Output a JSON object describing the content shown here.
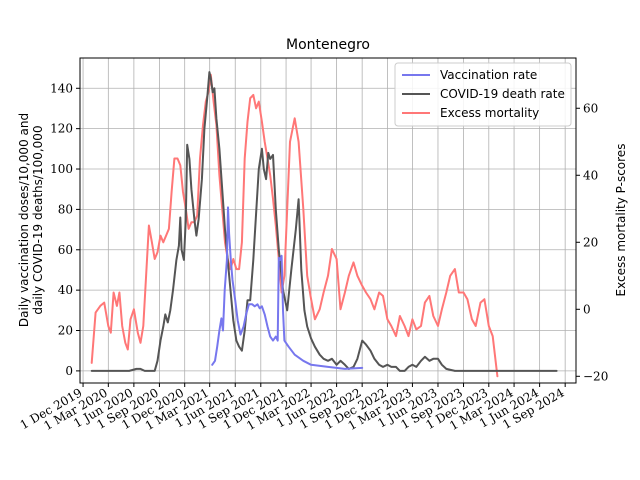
{
  "chart_data": {
    "type": "line",
    "title": "Montenegro",
    "ylabel_left": [
      "Daily vaccination doses/10,000 and",
      "daily COVID-19 deaths/100,000"
    ],
    "ylabel_right": "Excess mortality P-scores",
    "ylim_left": [
      -6,
      155
    ],
    "ylim_right": [
      -22,
      75
    ],
    "xlim": [
      "2019-11-20",
      "2024-10-10"
    ],
    "grid": true,
    "legend_position": "top-right",
    "x_tick_labels": [
      {
        "date": "2019-12-01",
        "label": "1 Dec 2019"
      },
      {
        "date": "2020-03-01",
        "label": "1 Mar 2020"
      },
      {
        "date": "2020-06-01",
        "label": "1 Jun 2020"
      },
      {
        "date": "2020-09-01",
        "label": "1 Sep 2020"
      },
      {
        "date": "2020-12-01",
        "label": "1 Dec 2020"
      },
      {
        "date": "2021-03-01",
        "label": "1 Mar 2021"
      },
      {
        "date": "2021-06-01",
        "label": "1 Jun 2021"
      },
      {
        "date": "2021-09-01",
        "label": "1 Sep 2021"
      },
      {
        "date": "2021-12-01",
        "label": "1 Dec 2021"
      },
      {
        "date": "2022-03-01",
        "label": "1 Mar 2022"
      },
      {
        "date": "2022-06-01",
        "label": "1 Jun 2022"
      },
      {
        "date": "2022-09-01",
        "label": "1 Sep 2022"
      },
      {
        "date": "2022-12-01",
        "label": "1 Dec 2022"
      },
      {
        "date": "2023-03-01",
        "label": "1 Mar 2023"
      },
      {
        "date": "2023-06-01",
        "label": "1 Jun 2023"
      },
      {
        "date": "2023-09-01",
        "label": "1 Sep 2023"
      },
      {
        "date": "2023-12-01",
        "label": "1 Dec 2023"
      },
      {
        "date": "2024-03-01",
        "label": "1 Mar 2024"
      },
      {
        "date": "2024-06-01",
        "label": "1 Jun 2024"
      },
      {
        "date": "2024-09-01",
        "label": "1 Sep 2024"
      }
    ],
    "y_ticks_left": [
      0,
      20,
      40,
      60,
      80,
      100,
      120,
      140
    ],
    "y_ticks_right": [
      -20,
      0,
      20,
      40,
      60
    ],
    "series": [
      {
        "name": "Vaccination rate",
        "axis": "left",
        "color": "#7777ee",
        "points": [
          [
            "2021-03-10",
            3
          ],
          [
            "2021-03-20",
            5
          ],
          [
            "2021-03-28",
            12
          ],
          [
            "2021-04-05",
            20
          ],
          [
            "2021-04-12",
            26
          ],
          [
            "2021-04-18",
            20
          ],
          [
            "2021-04-24",
            40
          ],
          [
            "2021-05-02",
            55
          ],
          [
            "2021-05-06",
            81
          ],
          [
            "2021-05-10",
            68
          ],
          [
            "2021-05-16",
            55
          ],
          [
            "2021-05-22",
            45
          ],
          [
            "2021-06-01",
            35
          ],
          [
            "2021-06-10",
            25
          ],
          [
            "2021-06-20",
            18
          ],
          [
            "2021-07-01",
            22
          ],
          [
            "2021-07-10",
            28
          ],
          [
            "2021-07-20",
            33
          ],
          [
            "2021-08-01",
            33
          ],
          [
            "2021-08-10",
            32
          ],
          [
            "2021-08-20",
            33
          ],
          [
            "2021-08-28",
            31
          ],
          [
            "2021-09-05",
            32
          ],
          [
            "2021-09-15",
            28
          ],
          [
            "2021-09-25",
            22
          ],
          [
            "2021-10-05",
            17
          ],
          [
            "2021-10-15",
            15
          ],
          [
            "2021-10-25",
            17
          ],
          [
            "2021-11-01",
            15
          ],
          [
            "2021-11-05",
            56
          ],
          [
            "2021-11-10",
            55
          ],
          [
            "2021-11-15",
            57
          ],
          [
            "2021-11-20",
            30
          ],
          [
            "2021-11-25",
            15
          ],
          [
            "2021-12-10",
            12
          ],
          [
            "2022-01-01",
            8
          ],
          [
            "2022-02-01",
            5
          ],
          [
            "2022-03-01",
            3
          ],
          [
            "2022-05-01",
            2
          ],
          [
            "2022-07-01",
            1
          ],
          [
            "2022-09-01",
            1.5
          ]
        ]
      },
      {
        "name": "COVID-19 death rate",
        "axis": "left",
        "color": "#555555",
        "points": [
          [
            "2020-01-01",
            0
          ],
          [
            "2020-03-01",
            0
          ],
          [
            "2020-05-15",
            0
          ],
          [
            "2020-06-10",
            1
          ],
          [
            "2020-06-25",
            1
          ],
          [
            "2020-07-10",
            0
          ],
          [
            "2020-08-01",
            0
          ],
          [
            "2020-08-15",
            0
          ],
          [
            "2020-08-25",
            5
          ],
          [
            "2020-09-05",
            15
          ],
          [
            "2020-09-15",
            22
          ],
          [
            "2020-09-22",
            28
          ],
          [
            "2020-10-01",
            24
          ],
          [
            "2020-10-10",
            30
          ],
          [
            "2020-10-20",
            40
          ],
          [
            "2020-11-01",
            55
          ],
          [
            "2020-11-10",
            62
          ],
          [
            "2020-11-15",
            76
          ],
          [
            "2020-11-20",
            60
          ],
          [
            "2020-11-28",
            55
          ],
          [
            "2020-12-05",
            75
          ],
          [
            "2020-12-10",
            112
          ],
          [
            "2020-12-18",
            105
          ],
          [
            "2020-12-25",
            90
          ],
          [
            "2021-01-05",
            75
          ],
          [
            "2021-01-12",
            67
          ],
          [
            "2021-01-20",
            75
          ],
          [
            "2021-02-01",
            95
          ],
          [
            "2021-02-10",
            120
          ],
          [
            "2021-02-20",
            135
          ],
          [
            "2021-02-28",
            148
          ],
          [
            "2021-03-05",
            145
          ],
          [
            "2021-03-12",
            138
          ],
          [
            "2021-03-18",
            140
          ],
          [
            "2021-03-25",
            125
          ],
          [
            "2021-04-05",
            110
          ],
          [
            "2021-04-15",
            90
          ],
          [
            "2021-04-25",
            70
          ],
          [
            "2021-05-05",
            55
          ],
          [
            "2021-05-15",
            40
          ],
          [
            "2021-05-25",
            25
          ],
          [
            "2021-06-05",
            15
          ],
          [
            "2021-06-15",
            12
          ],
          [
            "2021-06-25",
            10
          ],
          [
            "2021-07-05",
            20
          ],
          [
            "2021-07-15",
            35
          ],
          [
            "2021-07-25",
            35
          ],
          [
            "2021-08-05",
            55
          ],
          [
            "2021-08-15",
            78
          ],
          [
            "2021-08-25",
            100
          ],
          [
            "2021-09-05",
            110
          ],
          [
            "2021-09-12",
            100
          ],
          [
            "2021-09-20",
            95
          ],
          [
            "2021-09-28",
            108
          ],
          [
            "2021-10-05",
            105
          ],
          [
            "2021-10-15",
            107
          ],
          [
            "2021-10-25",
            80
          ],
          [
            "2021-11-05",
            60
          ],
          [
            "2021-11-20",
            40
          ],
          [
            "2021-12-05",
            30
          ],
          [
            "2021-12-20",
            50
          ],
          [
            "2022-01-05",
            70
          ],
          [
            "2022-01-15",
            85
          ],
          [
            "2022-01-25",
            50
          ],
          [
            "2022-02-05",
            30
          ],
          [
            "2022-02-15",
            22
          ],
          [
            "2022-03-01",
            16
          ],
          [
            "2022-03-15",
            12
          ],
          [
            "2022-04-01",
            8
          ],
          [
            "2022-04-15",
            6
          ],
          [
            "2022-05-01",
            5
          ],
          [
            "2022-05-15",
            6
          ],
          [
            "2022-06-01",
            3
          ],
          [
            "2022-06-15",
            5
          ],
          [
            "2022-07-01",
            3
          ],
          [
            "2022-07-15",
            1
          ],
          [
            "2022-08-01",
            2
          ],
          [
            "2022-08-15",
            6
          ],
          [
            "2022-09-01",
            15
          ],
          [
            "2022-09-15",
            13
          ],
          [
            "2022-10-01",
            10
          ],
          [
            "2022-10-15",
            6
          ],
          [
            "2022-11-01",
            3
          ],
          [
            "2022-11-15",
            2
          ],
          [
            "2022-12-01",
            3
          ],
          [
            "2022-12-15",
            2
          ],
          [
            "2023-01-01",
            2
          ],
          [
            "2023-01-15",
            0
          ],
          [
            "2023-02-01",
            0
          ],
          [
            "2023-02-15",
            2
          ],
          [
            "2023-03-01",
            3
          ],
          [
            "2023-03-15",
            2
          ],
          [
            "2023-04-01",
            5
          ],
          [
            "2023-04-15",
            7
          ],
          [
            "2023-05-01",
            5
          ],
          [
            "2023-05-15",
            6
          ],
          [
            "2023-06-01",
            6
          ],
          [
            "2023-06-15",
            3
          ],
          [
            "2023-07-01",
            1
          ],
          [
            "2023-08-01",
            0
          ],
          [
            "2024-01-01",
            0
          ],
          [
            "2024-08-01",
            0
          ]
        ]
      },
      {
        "name": "Excess mortality",
        "axis": "right",
        "color": "#ff7777",
        "points": [
          [
            "2020-01-01",
            -16
          ],
          [
            "2020-01-15",
            -1
          ],
          [
            "2020-02-01",
            1
          ],
          [
            "2020-02-15",
            2
          ],
          [
            "2020-03-01",
            -5
          ],
          [
            "2020-03-10",
            -7
          ],
          [
            "2020-03-20",
            5
          ],
          [
            "2020-04-01",
            1
          ],
          [
            "2020-04-10",
            5
          ],
          [
            "2020-04-20",
            -5
          ],
          [
            "2020-05-01",
            -10
          ],
          [
            "2020-05-10",
            -12
          ],
          [
            "2020-05-20",
            -3
          ],
          [
            "2020-06-01",
            0
          ],
          [
            "2020-06-15",
            -7
          ],
          [
            "2020-06-25",
            -10
          ],
          [
            "2020-07-05",
            -5
          ],
          [
            "2020-07-15",
            10
          ],
          [
            "2020-07-25",
            25
          ],
          [
            "2020-08-05",
            20
          ],
          [
            "2020-08-15",
            15
          ],
          [
            "2020-08-25",
            17
          ],
          [
            "2020-09-05",
            22
          ],
          [
            "2020-09-15",
            20
          ],
          [
            "2020-09-25",
            22
          ],
          [
            "2020-10-05",
            24
          ],
          [
            "2020-10-15",
            35
          ],
          [
            "2020-10-25",
            45
          ],
          [
            "2020-11-05",
            45
          ],
          [
            "2020-11-15",
            43
          ],
          [
            "2020-11-25",
            35
          ],
          [
            "2020-12-05",
            30
          ],
          [
            "2020-12-15",
            24
          ],
          [
            "2020-12-25",
            26
          ],
          [
            "2021-01-05",
            26
          ],
          [
            "2021-01-15",
            28
          ],
          [
            "2021-01-25",
            45
          ],
          [
            "2021-02-05",
            55
          ],
          [
            "2021-02-15",
            62
          ],
          [
            "2021-02-25",
            65
          ],
          [
            "2021-03-05",
            70
          ],
          [
            "2021-03-15",
            62
          ],
          [
            "2021-03-25",
            55
          ],
          [
            "2021-04-05",
            40
          ],
          [
            "2021-04-15",
            30
          ],
          [
            "2021-04-25",
            20
          ],
          [
            "2021-05-05",
            15
          ],
          [
            "2021-05-15",
            12
          ],
          [
            "2021-05-25",
            15
          ],
          [
            "2021-06-05",
            12
          ],
          [
            "2021-06-15",
            12
          ],
          [
            "2021-06-25",
            20
          ],
          [
            "2021-07-05",
            45
          ],
          [
            "2021-07-15",
            56
          ],
          [
            "2021-07-25",
            63
          ],
          [
            "2021-08-05",
            64
          ],
          [
            "2021-08-15",
            60
          ],
          [
            "2021-08-25",
            62
          ],
          [
            "2021-09-05",
            56
          ],
          [
            "2021-09-15",
            50
          ],
          [
            "2021-09-25",
            45
          ],
          [
            "2021-10-05",
            40
          ],
          [
            "2021-10-15",
            33
          ],
          [
            "2021-10-25",
            25
          ],
          [
            "2021-11-05",
            15
          ],
          [
            "2021-11-15",
            5
          ],
          [
            "2021-11-25",
            10
          ],
          [
            "2021-12-05",
            30
          ],
          [
            "2021-12-15",
            50
          ],
          [
            "2022-01-01",
            57
          ],
          [
            "2022-01-15",
            50
          ],
          [
            "2022-02-01",
            30
          ],
          [
            "2022-02-15",
            10
          ],
          [
            "2022-03-01",
            3
          ],
          [
            "2022-03-15",
            -3
          ],
          [
            "2022-04-01",
            0
          ],
          [
            "2022-04-15",
            5
          ],
          [
            "2022-05-01",
            10
          ],
          [
            "2022-05-15",
            18
          ],
          [
            "2022-06-01",
            15
          ],
          [
            "2022-06-15",
            0
          ],
          [
            "2022-07-01",
            5
          ],
          [
            "2022-07-15",
            10
          ],
          [
            "2022-08-01",
            14
          ],
          [
            "2022-08-15",
            10
          ],
          [
            "2022-09-01",
            7
          ],
          [
            "2022-09-15",
            5
          ],
          [
            "2022-10-01",
            3
          ],
          [
            "2022-10-15",
            0
          ],
          [
            "2022-11-01",
            5
          ],
          [
            "2022-11-15",
            4
          ],
          [
            "2022-12-01",
            -3
          ],
          [
            "2022-12-15",
            -5
          ],
          [
            "2023-01-01",
            -8
          ],
          [
            "2023-01-15",
            -2
          ],
          [
            "2023-02-01",
            -5
          ],
          [
            "2023-02-15",
            -8
          ],
          [
            "2023-03-01",
            -3
          ],
          [
            "2023-03-15",
            -6
          ],
          [
            "2023-04-01",
            -5
          ],
          [
            "2023-04-15",
            2
          ],
          [
            "2023-05-01",
            4
          ],
          [
            "2023-05-15",
            -2
          ],
          [
            "2023-06-01",
            -5
          ],
          [
            "2023-06-15",
            0
          ],
          [
            "2023-07-01",
            5
          ],
          [
            "2023-07-15",
            10
          ],
          [
            "2023-08-01",
            12
          ],
          [
            "2023-08-15",
            5
          ],
          [
            "2023-09-01",
            5
          ],
          [
            "2023-09-15",
            3
          ],
          [
            "2023-10-01",
            -3
          ],
          [
            "2023-10-15",
            -5
          ],
          [
            "2023-11-01",
            2
          ],
          [
            "2023-11-15",
            3
          ],
          [
            "2023-12-01",
            -5
          ],
          [
            "2023-12-15",
            -8
          ],
          [
            "2024-01-01",
            -20
          ]
        ]
      }
    ]
  }
}
